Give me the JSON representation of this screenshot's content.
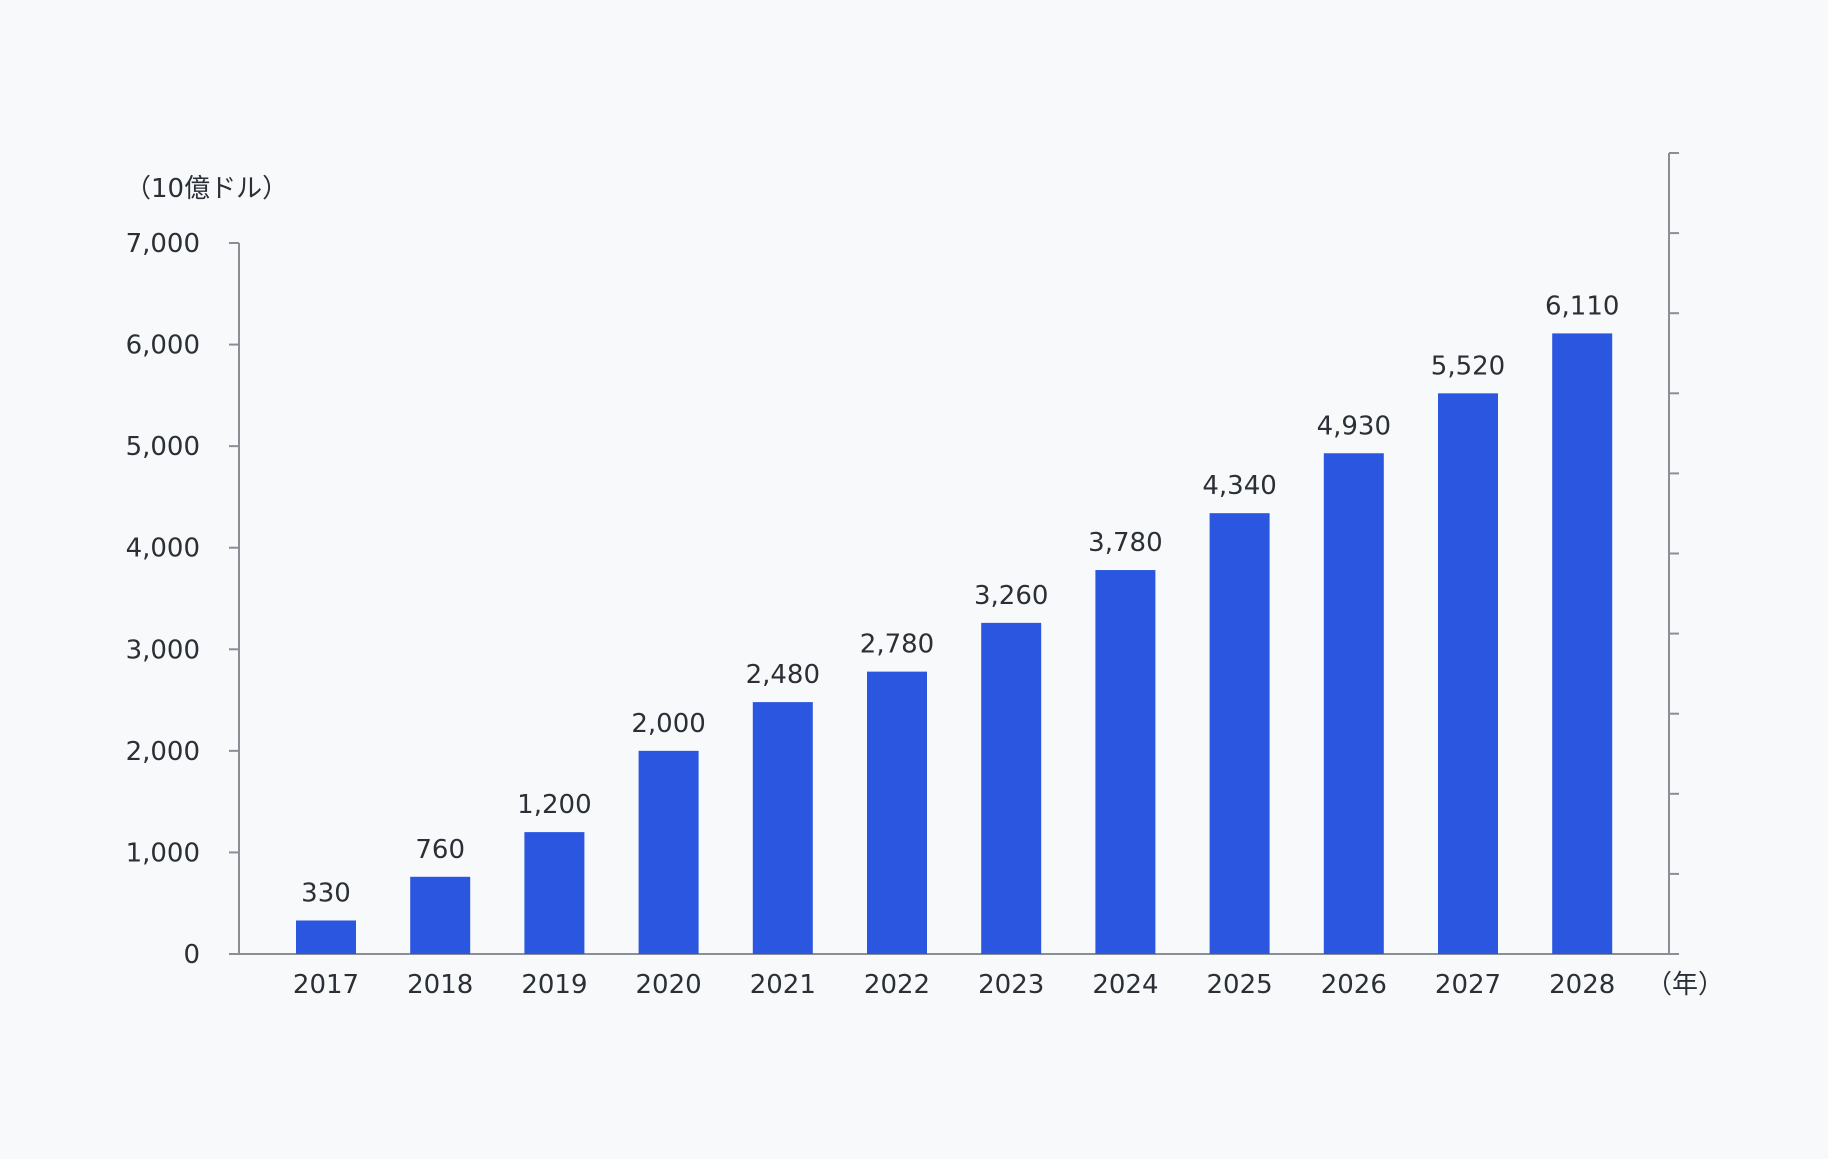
{
  "chart_data": {
    "type": "bar",
    "categories": [
      "2017",
      "2018",
      "2019",
      "2020",
      "2021",
      "2022",
      "2023",
      "2024",
      "2025",
      "2026",
      "2027",
      "2028"
    ],
    "values": [
      330,
      760,
      1200,
      2000,
      2480,
      2780,
      3260,
      3780,
      4340,
      4930,
      5520,
      6110
    ],
    "value_labels": [
      "330",
      "760",
      "1,200",
      "2,000",
      "2,480",
      "2,780",
      "3,260",
      "3,780",
      "4,340",
      "4,930",
      "5,520",
      "6,110"
    ],
    "ylabel": "（10億ドル）",
    "xlabel": "（年）",
    "ylim": [
      0,
      7000
    ],
    "yticks": [
      0,
      1000,
      2000,
      3000,
      4000,
      5000,
      6000,
      7000
    ],
    "ytick_labels": [
      "0",
      "1,000",
      "2,000",
      "3,000",
      "4,000",
      "5,000",
      "6,000",
      "7,000"
    ],
    "bar_color": "#2b57e0",
    "grid": false
  }
}
